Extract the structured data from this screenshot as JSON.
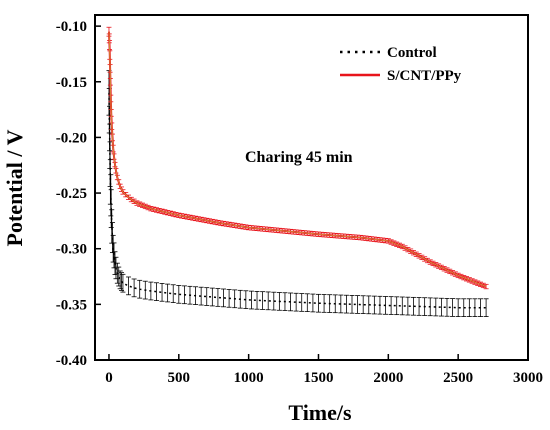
{
  "chart_data": {
    "type": "line",
    "xlabel": "Time/s",
    "ylabel": "Potential / V",
    "xlim": [
      -100,
      3000
    ],
    "ylim": [
      -0.4,
      -0.09
    ],
    "xticks": [
      0,
      500,
      1000,
      1500,
      2000,
      2500,
      3000
    ],
    "xtick_labels": [
      "0",
      "500",
      "1000",
      "1500",
      "2000",
      "2500",
      "3000"
    ],
    "yticks": [
      -0.4,
      -0.35,
      -0.3,
      -0.25,
      -0.2,
      -0.15,
      -0.1
    ],
    "ytick_labels": [
      "-0.40",
      "-0.35",
      "-0.30",
      "-0.25",
      "-0.20",
      "-0.15",
      "-0.10"
    ],
    "grid": false,
    "legend_position": "top-right",
    "annotation": "Charing 45 min",
    "series": [
      {
        "name": "Control",
        "color": "#000000",
        "style": "dotted",
        "x": [
          0,
          5,
          10,
          20,
          30,
          45,
          60,
          80,
          100,
          150,
          200,
          300,
          500,
          800,
          1000,
          1500,
          2000,
          2500,
          2700
        ],
        "y": [
          -0.16,
          -0.2,
          -0.24,
          -0.28,
          -0.3,
          -0.315,
          -0.322,
          -0.328,
          -0.331,
          -0.334,
          -0.336,
          -0.338,
          -0.341,
          -0.344,
          -0.346,
          -0.349,
          -0.351,
          -0.353,
          -0.353
        ],
        "error": [
          0.02,
          0.02,
          0.02,
          0.015,
          0.012,
          0.01,
          0.009,
          0.008,
          0.008,
          0.008,
          0.008,
          0.008,
          0.008,
          0.008,
          0.008,
          0.008,
          0.008,
          0.008,
          0.008
        ]
      },
      {
        "name": "S/CNT/PPy",
        "color": "#e8141b",
        "style": "solid",
        "x": [
          0,
          5,
          10,
          15,
          20,
          30,
          40,
          50,
          60,
          80,
          100,
          150,
          200,
          300,
          500,
          800,
          1000,
          1500,
          1800,
          2000,
          2100,
          2200,
          2300,
          2400,
          2500,
          2600,
          2700
        ],
        "y": [
          -0.105,
          -0.12,
          -0.15,
          -0.175,
          -0.19,
          -0.21,
          -0.222,
          -0.23,
          -0.236,
          -0.244,
          -0.249,
          -0.255,
          -0.259,
          -0.264,
          -0.27,
          -0.277,
          -0.281,
          -0.287,
          -0.29,
          -0.293,
          -0.298,
          -0.305,
          -0.312,
          -0.318,
          -0.324,
          -0.329,
          -0.334
        ],
        "error": [
          0.004,
          0.004,
          0.003,
          0.003,
          0.003,
          0.003,
          0.002,
          0.002,
          0.002,
          0.002,
          0.002,
          0.002,
          0.002,
          0.002,
          0.002,
          0.002,
          0.002,
          0.002,
          0.002,
          0.002,
          0.002,
          0.002,
          0.002,
          0.002,
          0.002,
          0.002,
          0.002
        ]
      }
    ]
  }
}
